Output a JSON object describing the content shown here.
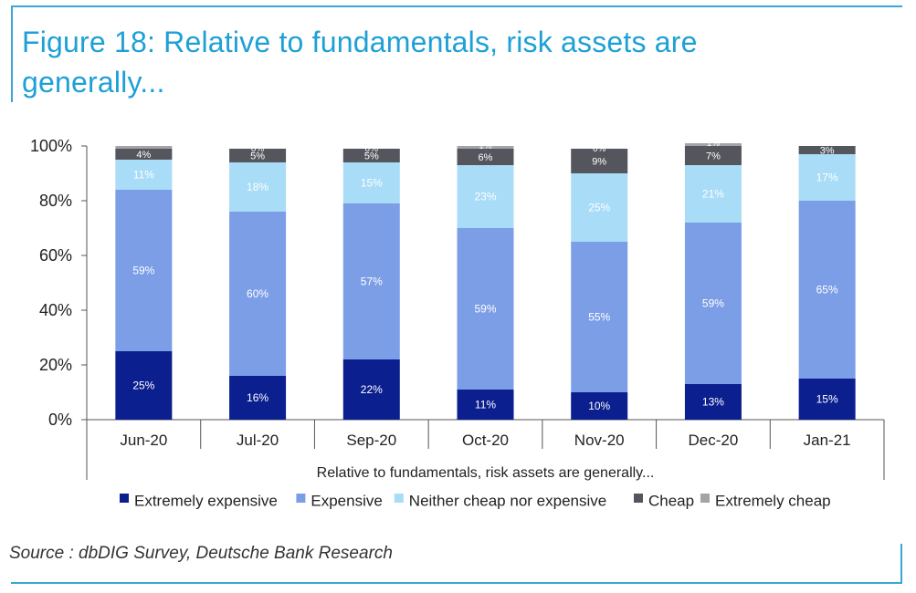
{
  "title": "Figure 18: Relative to fundamentals, risk assets are generally...",
  "source": "Source : dbDIG Survey, Deutsche Bank Research",
  "colors": {
    "frame": "#3aa6d6",
    "title": "#1ea0d6",
    "extremely_expensive": "#0b1f8f",
    "expensive": "#7c9ee6",
    "neither": "#a8dcf7",
    "cheap": "#55565d",
    "extremely_cheap": "#a3a4a8"
  },
  "chart_data": {
    "type": "bar",
    "stacked": true,
    "categories": [
      "Jun-20",
      "Jul-20",
      "Sep-20",
      "Oct-20",
      "Nov-20",
      "Dec-20",
      "Jan-21"
    ],
    "xlabel": "Relative to fundamentals, risk assets are generally...",
    "ylabel": "",
    "ylim": [
      0,
      100
    ],
    "yticks": [
      "0%",
      "20%",
      "40%",
      "60%",
      "80%",
      "100%"
    ],
    "legend_position": "bottom",
    "series": [
      {
        "name": "Extremely expensive",
        "color_key": "extremely_expensive",
        "values": [
          25,
          16,
          22,
          11,
          10,
          13,
          15
        ],
        "labels": [
          "25%",
          "16%",
          "22%",
          "11%",
          "10%",
          "13%",
          "15%"
        ]
      },
      {
        "name": "Expensive",
        "color_key": "expensive",
        "values": [
          59,
          60,
          57,
          59,
          55,
          59,
          65
        ],
        "labels": [
          "59%",
          "60%",
          "57%",
          "59%",
          "55%",
          "59%",
          "65%"
        ]
      },
      {
        "name": "Neither cheap nor expensive",
        "color_key": "neither",
        "values": [
          11,
          18,
          15,
          23,
          25,
          21,
          17
        ],
        "labels": [
          "11%",
          "18%",
          "15%",
          "23%",
          "25%",
          "21%",
          "17%"
        ]
      },
      {
        "name": "Cheap",
        "color_key": "cheap",
        "values": [
          4,
          5,
          5,
          6,
          9,
          7,
          3
        ],
        "labels": [
          "4%",
          "5%",
          "5%",
          "6%",
          "9%",
          "7%",
          "3%"
        ]
      },
      {
        "name": "Extremely cheap",
        "color_key": "extremely_cheap",
        "values": [
          1,
          0,
          0,
          1,
          0,
          1,
          0
        ],
        "labels": [
          "",
          "0%",
          "0%",
          "1%",
          "0%",
          "1%",
          ""
        ]
      }
    ]
  }
}
